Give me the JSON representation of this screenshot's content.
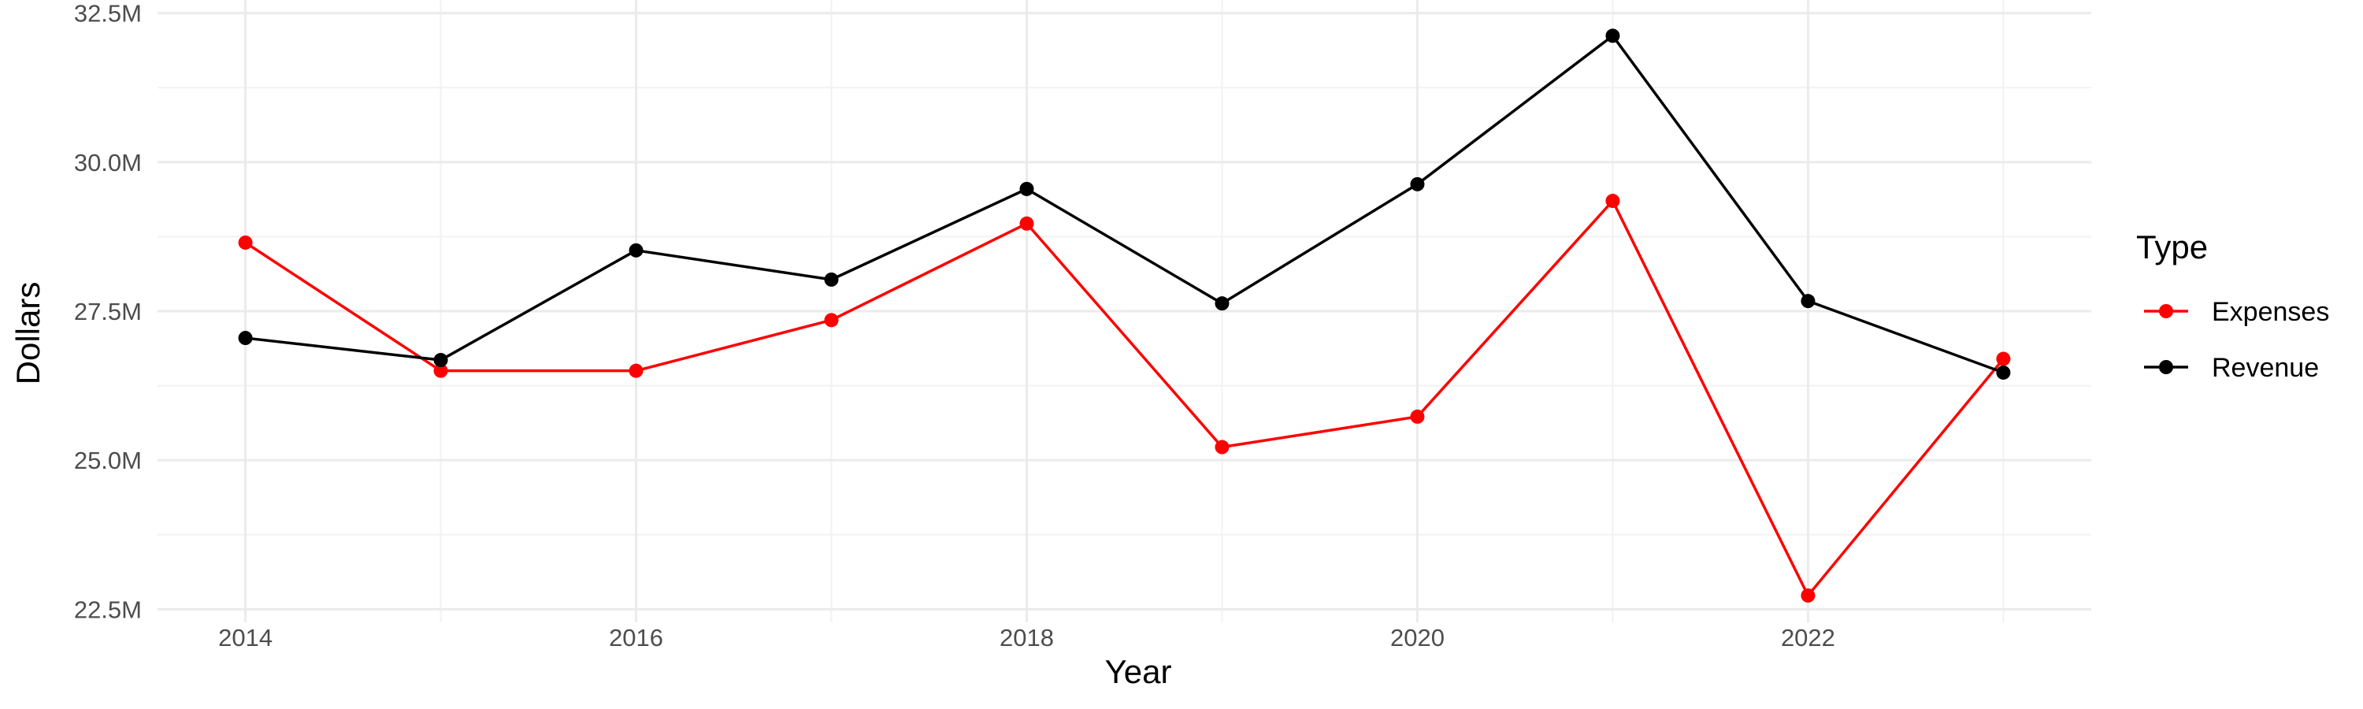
{
  "chart_data": {
    "type": "line",
    "title": "",
    "xlabel": "Year",
    "ylabel": "Dollars",
    "x": [
      2014,
      2015,
      2016,
      2017,
      2018,
      2019,
      2020,
      2021,
      2022,
      2023
    ],
    "xlim": [
      2013.55,
      2023.45
    ],
    "ylim": [
      22.28,
      32.72
    ],
    "x_ticks": [
      2014,
      2016,
      2018,
      2020,
      2022
    ],
    "x_tick_labels": [
      "2014",
      "2016",
      "2018",
      "2020",
      "2022"
    ],
    "y_ticks": [
      22.5,
      25.0,
      27.5,
      30.0,
      32.5
    ],
    "y_tick_labels": [
      "22.5M",
      "25.0M",
      "27.5M",
      "30.0M",
      "32.5M"
    ],
    "y_units": "millions of dollars",
    "grid": true,
    "legend": {
      "title": "Type",
      "position": "right"
    },
    "series": [
      {
        "name": "Expenses",
        "color": "#ff0000",
        "values": [
          28.65,
          26.5,
          26.5,
          27.35,
          28.97,
          25.22,
          25.73,
          29.35,
          22.73,
          26.7
        ]
      },
      {
        "name": "Revenue",
        "color": "#000000",
        "values": [
          27.05,
          26.68,
          28.52,
          28.03,
          29.55,
          27.63,
          29.63,
          32.12,
          27.67,
          26.47
        ]
      }
    ]
  }
}
